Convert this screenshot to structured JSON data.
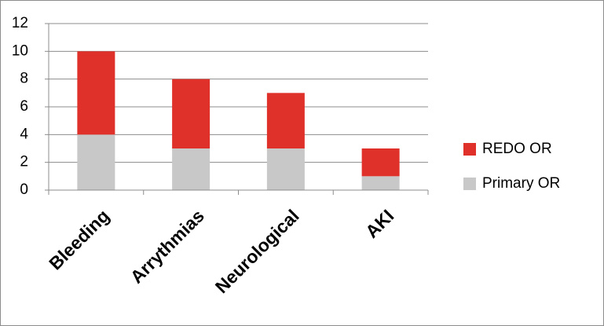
{
  "chart_data": {
    "type": "bar",
    "stacked": true,
    "categories": [
      "Bleeding",
      "Arrythmias",
      "Neurological",
      "AKI"
    ],
    "series": [
      {
        "name": "Primary OR",
        "color": "#c8c8c8",
        "values": [
          4,
          3,
          3,
          1
        ]
      },
      {
        "name": "REDO OR",
        "color": "#e0302a",
        "values": [
          6,
          5,
          4,
          2
        ]
      }
    ],
    "ylim": [
      0,
      12
    ],
    "yticks": [
      0,
      2,
      4,
      6,
      8,
      10,
      12
    ],
    "grid": true,
    "legend": "right"
  }
}
